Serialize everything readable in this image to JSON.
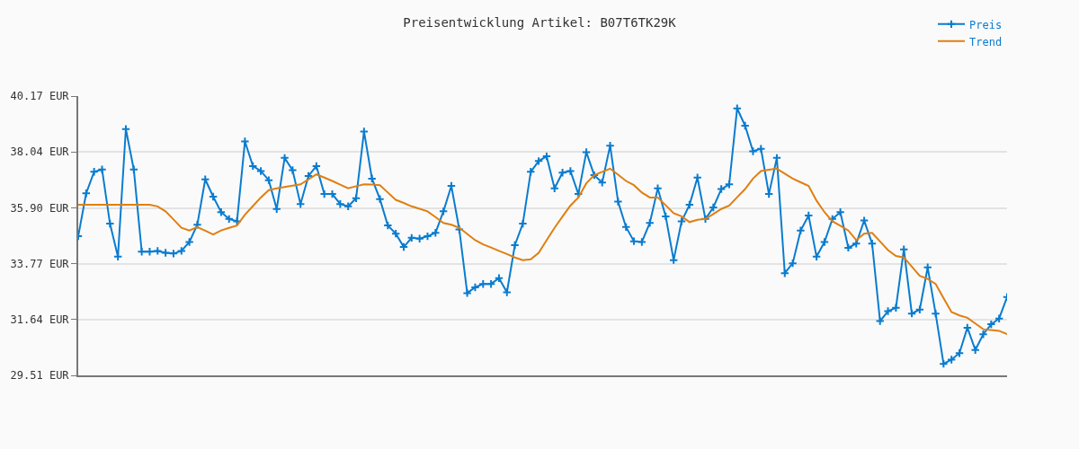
{
  "chart_data": {
    "type": "line",
    "title": "Preisentwicklung Artikel: B07T6TK29K",
    "categories": [
      null,
      null,
      null,
      null,
      null,
      null,
      null,
      null,
      null,
      null,
      null,
      null,
      null,
      null,
      null,
      null,
      null,
      null,
      null,
      null,
      null,
      null,
      null,
      null,
      null,
      null,
      null,
      null,
      null,
      null,
      null,
      null,
      null,
      null,
      null,
      null,
      null,
      null,
      null,
      null,
      null,
      null,
      null,
      null,
      null,
      null,
      null,
      null,
      null,
      null,
      null,
      null,
      null,
      null,
      null,
      null,
      null,
      null,
      null,
      null,
      null,
      null,
      null,
      null,
      null,
      null,
      null,
      null,
      null,
      null,
      null,
      null,
      null,
      null,
      null,
      null,
      null,
      null,
      null,
      null,
      null,
      null,
      null,
      null,
      null,
      null,
      null,
      null,
      null,
      null,
      null,
      null,
      null,
      null,
      null,
      null,
      null,
      null,
      null,
      null,
      null,
      null,
      null,
      null,
      null,
      null,
      null,
      null,
      null,
      null,
      null,
      null,
      null,
      null,
      null,
      null,
      null,
      null
    ],
    "series": [
      {
        "name": "Preis",
        "color": "#0a7ccf",
        "marker": "cross",
        "values": [
          34.82,
          36.46,
          37.28,
          37.37,
          35.3,
          34.04,
          38.91,
          37.37,
          34.23,
          34.23,
          34.26,
          34.19,
          34.16,
          34.26,
          34.6,
          35.26,
          36.99,
          36.33,
          35.74,
          35.48,
          35.39,
          38.44,
          37.5,
          37.31,
          36.96,
          35.86,
          37.81,
          37.34,
          36.05,
          37.12,
          37.5,
          36.43,
          36.43,
          36.05,
          35.96,
          36.27,
          38.82,
          37.02,
          36.24,
          35.23,
          34.92,
          34.41,
          34.76,
          34.73,
          34.82,
          34.95,
          35.77,
          36.74,
          35.08,
          32.65,
          32.87,
          33.0,
          33.0,
          33.22,
          32.68,
          34.48,
          35.3,
          37.28,
          37.69,
          37.87,
          36.65,
          37.25,
          37.31,
          36.43,
          38.03,
          37.15,
          36.87,
          38.28,
          36.14,
          35.17,
          34.63,
          34.6,
          35.33,
          36.65,
          35.58,
          33.91,
          35.39,
          36.02,
          37.06,
          35.48,
          35.92,
          36.62,
          36.8,
          39.7,
          39.04,
          38.06,
          38.16,
          36.43,
          37.81,
          33.41,
          33.79,
          35.04,
          35.61,
          34.04,
          34.6,
          35.48,
          35.74,
          34.38,
          34.54,
          35.42,
          34.54,
          31.58,
          31.96,
          32.09,
          34.32,
          31.87,
          32.02,
          33.63,
          31.87,
          29.95,
          30.11,
          30.36,
          31.33,
          30.48,
          31.08,
          31.46,
          31.68,
          32.5
        ]
      },
      {
        "name": "Trend",
        "color": "#e07f10",
        "marker": "none",
        "values": [
          36.02,
          36.02,
          36.02,
          36.02,
          36.02,
          36.02,
          36.02,
          36.02,
          36.02,
          36.02,
          35.96,
          35.77,
          35.46,
          35.14,
          35.04,
          35.17,
          35.03,
          34.89,
          35.04,
          35.14,
          35.23,
          35.64,
          35.97,
          36.3,
          36.58,
          36.65,
          36.7,
          36.75,
          36.8,
          36.99,
          37.18,
          37.06,
          36.93,
          36.79,
          36.65,
          36.73,
          36.8,
          36.79,
          36.77,
          36.49,
          36.21,
          36.09,
          35.96,
          35.87,
          35.77,
          35.55,
          35.33,
          35.26,
          35.14,
          34.91,
          34.67,
          34.51,
          34.39,
          34.26,
          34.14,
          34.01,
          33.91,
          33.94,
          34.19,
          34.67,
          35.14,
          35.57,
          35.99,
          36.3,
          36.84,
          37.15,
          37.28,
          37.4,
          37.17,
          36.93,
          36.77,
          36.49,
          36.3,
          36.3,
          36.0,
          35.7,
          35.58,
          35.36,
          35.45,
          35.48,
          35.67,
          35.86,
          35.99,
          36.31,
          36.62,
          37.02,
          37.31,
          37.36,
          37.4,
          37.21,
          37.02,
          36.88,
          36.74,
          36.18,
          35.74,
          35.39,
          35.22,
          35.04,
          34.67,
          34.92,
          34.95,
          34.62,
          34.29,
          34.07,
          34.01,
          33.66,
          33.31,
          33.19,
          33.0,
          32.46,
          31.93,
          31.8,
          31.71,
          31.49,
          31.27,
          31.24,
          31.21,
          31.08
        ]
      }
    ],
    "ylim": [
      29.51,
      40.17
    ],
    "yticks": [
      {
        "value": 29.51,
        "label": "29.51 EUR"
      },
      {
        "value": 31.64,
        "label": "31.64 EUR"
      },
      {
        "value": 33.77,
        "label": "33.77 EUR"
      },
      {
        "value": 35.9,
        "label": "35.90 EUR"
      },
      {
        "value": 38.04,
        "label": "38.04 EUR"
      },
      {
        "value": 40.17,
        "label": "40.17 EUR"
      }
    ],
    "grid": "y",
    "legend": "top right",
    "line_style": "solid"
  }
}
